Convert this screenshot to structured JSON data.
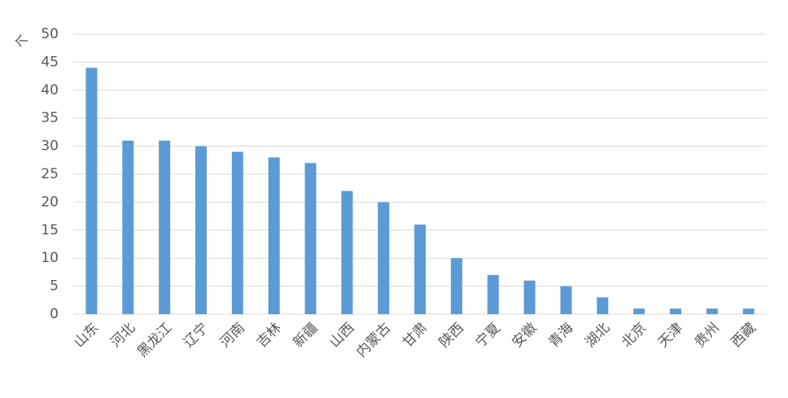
{
  "chart_data": {
    "type": "bar",
    "y_label": "个",
    "categories": [
      "山东",
      "河北",
      "黑龙江",
      "辽宁",
      "河南",
      "吉林",
      "新疆",
      "山西",
      "内蒙古",
      "甘肃",
      "陕西",
      "宁夏",
      "安徽",
      "青海",
      "湖北",
      "北京",
      "天津",
      "贵州",
      "西藏"
    ],
    "values": [
      44,
      31,
      31,
      30,
      29,
      28,
      27,
      22,
      20,
      16,
      10,
      7,
      6,
      5,
      3,
      1,
      1,
      1,
      1
    ],
    "color": "#5b9bd5",
    "ylim": [
      0,
      50
    ],
    "yticks": [
      0,
      5,
      10,
      15,
      20,
      25,
      30,
      35,
      40,
      45,
      50
    ],
    "grid": true
  }
}
